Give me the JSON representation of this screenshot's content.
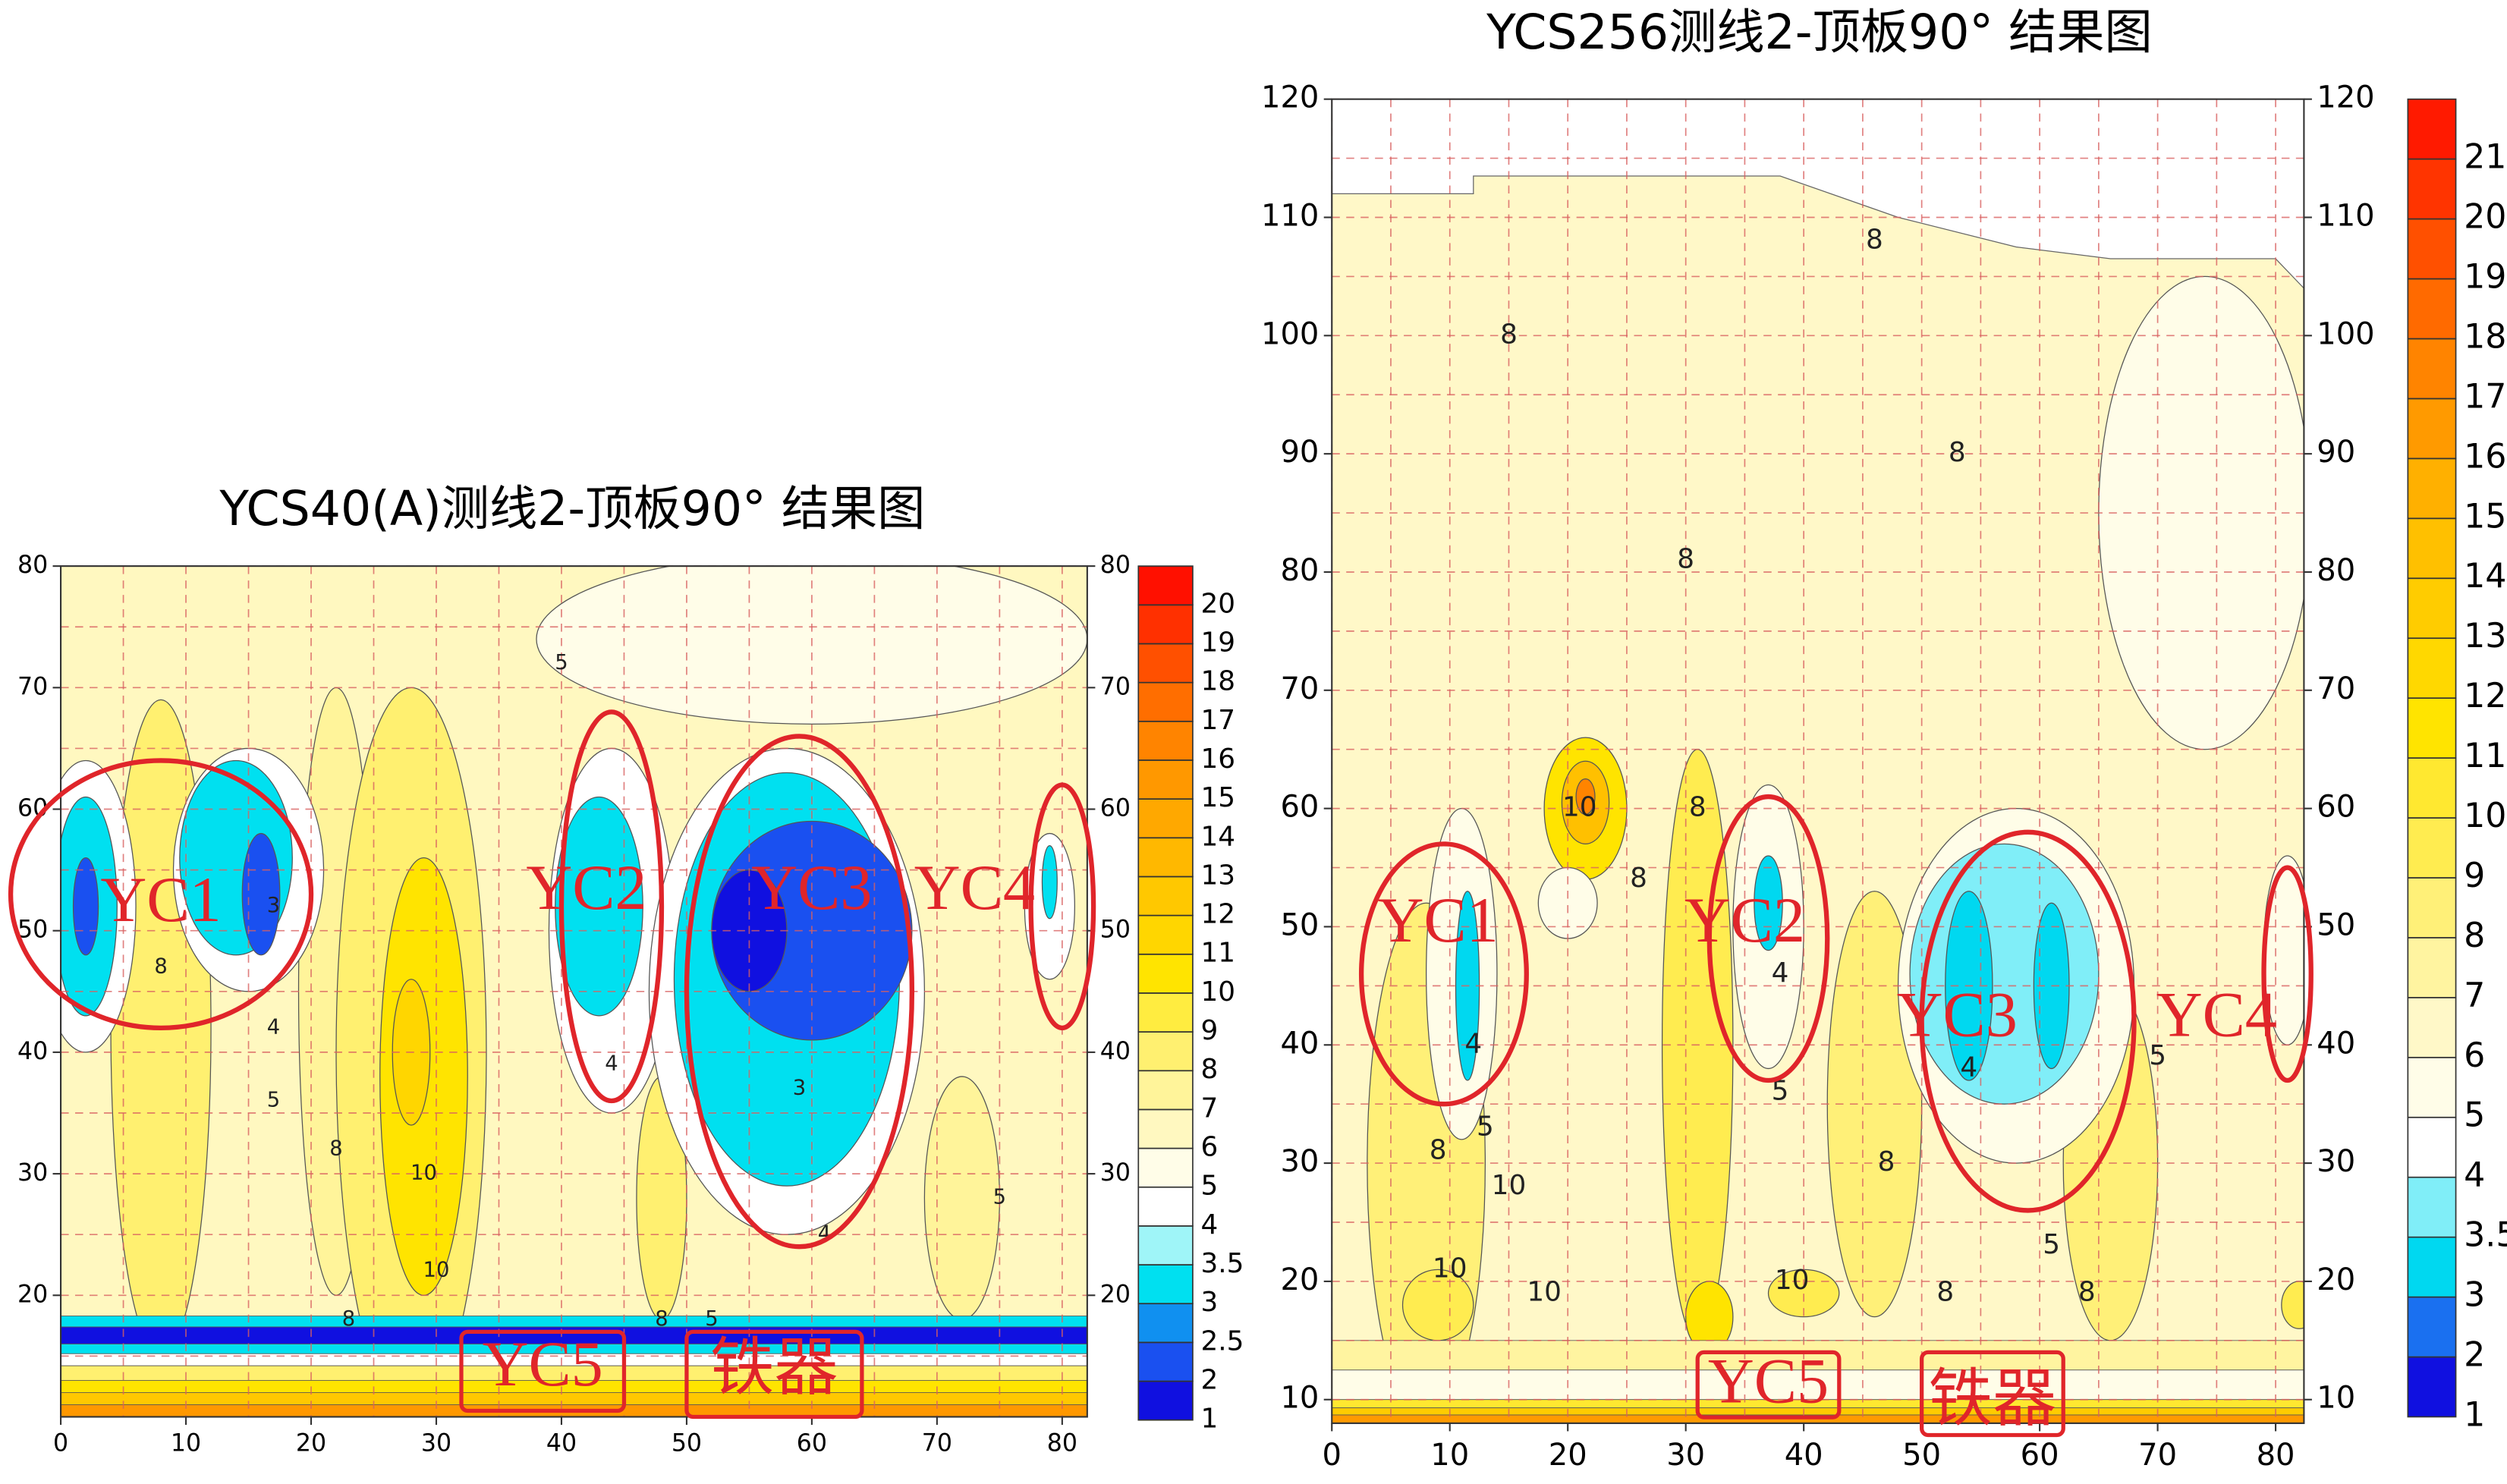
{
  "chart_data": [
    {
      "type": "contour",
      "title": "YCS40(A)测线2-顶板90° 结果图",
      "xlim": [
        0,
        82
      ],
      "ylim": [
        10,
        80
      ],
      "xticks": [
        0,
        10,
        20,
        30,
        40,
        50,
        60,
        70,
        80
      ],
      "yticks": [
        20,
        30,
        40,
        50,
        60,
        70,
        80
      ],
      "xminor": [
        5,
        15,
        25,
        35,
        45,
        55,
        65,
        75
      ],
      "yminor": [
        15,
        25,
        35,
        45,
        55,
        65,
        75
      ],
      "grid": true,
      "colorbar": {
        "levels": [
          1,
          2,
          2.5,
          3,
          3.5,
          4,
          5,
          6,
          7,
          8,
          9,
          10,
          11,
          12,
          13,
          14,
          15,
          16,
          17,
          18,
          19,
          20
        ],
        "colors": [
          "#1010e0",
          "#1a50f0",
          "#1090f0",
          "#00e0f0",
          "#9ff5f8",
          "#ffffff",
          "#fffde8",
          "#fff8c0",
          "#fff49a",
          "#fff070",
          "#ffec40",
          "#ffe400",
          "#ffd600",
          "#ffc800",
          "#ffb800",
          "#ffa800",
          "#ff9800",
          "#ff8400",
          "#ff6e00",
          "#ff5000",
          "#ff3000",
          "#ff1000"
        ]
      },
      "contour_labels": [
        5,
        8,
        3,
        4,
        5,
        8,
        10,
        10,
        8,
        4,
        3,
        4,
        5,
        8,
        5
      ],
      "annotations": [
        "YC1",
        "YC2",
        "YC3",
        "YC4",
        "YC5",
        "铁器"
      ]
    },
    {
      "type": "contour",
      "title": "YCS256测线2-顶板90° 结果图",
      "xlim": [
        0,
        82.4
      ],
      "ylim": [
        8,
        120
      ],
      "xticks": [
        0,
        10,
        20,
        30,
        40,
        50,
        60,
        70,
        80
      ],
      "yticks": [
        10,
        20,
        30,
        40,
        50,
        60,
        70,
        80,
        90,
        100,
        110,
        120
      ],
      "xminor": [
        5,
        15,
        25,
        35,
        45,
        55,
        65,
        75
      ],
      "yminor": [
        15,
        25,
        35,
        45,
        55,
        65,
        75,
        85,
        95,
        105,
        115
      ],
      "grid": true,
      "colorbar": {
        "levels": [
          1,
          2,
          3,
          3.5,
          4,
          5,
          6,
          7,
          8,
          9,
          10,
          11,
          12,
          13,
          14,
          15,
          16,
          17,
          18,
          19,
          20,
          21
        ],
        "colors": [
          "#1010e0",
          "#1a70f0",
          "#00d8f0",
          "#80eef8",
          "#ffffff",
          "#fffde8",
          "#fff8c8",
          "#fff4a0",
          "#fff078",
          "#ffec50",
          "#ffe830",
          "#ffe400",
          "#ffd800",
          "#ffcc00",
          "#ffc000",
          "#ffb000",
          "#ff9a00",
          "#ff8400",
          "#ff6a00",
          "#ff5000",
          "#ff3400",
          "#ff1a00"
        ]
      },
      "contour_labels": [
        8,
        8,
        8,
        8,
        8,
        8,
        10,
        4,
        5,
        8,
        10,
        10,
        10,
        4,
        5,
        10,
        8,
        8,
        4,
        5,
        8,
        5
      ],
      "annotations": [
        "YC1",
        "YC2",
        "YC3",
        "YC4",
        "YC5",
        "铁器"
      ]
    }
  ]
}
